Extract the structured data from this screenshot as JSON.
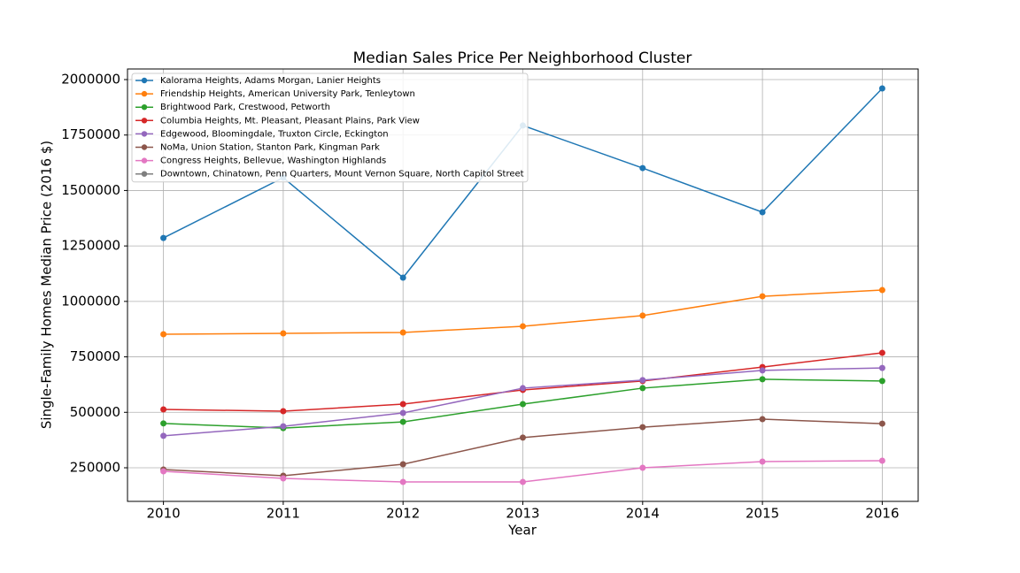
{
  "chart_data": {
    "type": "line",
    "title": "Median Sales Price Per Neighborhood Cluster",
    "xlabel": "Year",
    "ylabel": "Single-Family Homes Median Price (2016 $)",
    "x": [
      2010,
      2011,
      2012,
      2013,
      2014,
      2015,
      2016
    ],
    "xlim": [
      2009.7,
      2016.3
    ],
    "xticks": [
      2010,
      2011,
      2012,
      2013,
      2014,
      2015,
      2016
    ],
    "ylim": [
      98500,
      2047800
    ],
    "yticks": [
      250000,
      500000,
      750000,
      1000000,
      1250000,
      1500000,
      1750000,
      2000000
    ],
    "grid": true,
    "legend": "upper left",
    "series": [
      {
        "name": "Kalorama Heights, Adams Morgan, Lanier Heights",
        "color": "#1f77b4",
        "values": [
          1286000,
          1558000,
          1107000,
          1793000,
          1601000,
          1402000,
          1960000
        ]
      },
      {
        "name": "Friendship Heights, American University Park, Tenleytown",
        "color": "#ff7f0e",
        "values": [
          852000,
          856000,
          860000,
          888000,
          936000,
          1023000,
          1051000
        ]
      },
      {
        "name": "Brightwood Park, Crestwood, Petworth",
        "color": "#2ca02c",
        "values": [
          450000,
          429000,
          457000,
          537000,
          609000,
          649000,
          641000
        ]
      },
      {
        "name": "Columbia Heights, Mt. Pleasant, Pleasant Plains, Park View",
        "color": "#d62728",
        "values": [
          513000,
          505000,
          537000,
          601000,
          641000,
          704000,
          768000
        ]
      },
      {
        "name": "Edgewood, Bloomingdale, Truxton Circle, Eckington",
        "color": "#9467bd",
        "values": [
          394000,
          437000,
          497000,
          609000,
          645000,
          689000,
          700000
        ]
      },
      {
        "name": "NoMa, Union Station, Stanton Park, Kingman Park",
        "color": "#8c564b",
        "values": [
          242000,
          214000,
          266000,
          386000,
          433000,
          469000,
          449000
        ]
      },
      {
        "name": "Congress Heights, Bellevue, Washington Highlands",
        "color": "#e377c2",
        "values": [
          234000,
          202000,
          186000,
          186000,
          250000,
          278000,
          282000
        ]
      },
      {
        "name": "Downtown, Chinatown, Penn Quarters, Mount Vernon Square, North Capitol Street",
        "color": "#7f7f7f",
        "values": [
          null,
          null,
          null,
          null,
          null,
          null,
          null
        ]
      }
    ]
  }
}
